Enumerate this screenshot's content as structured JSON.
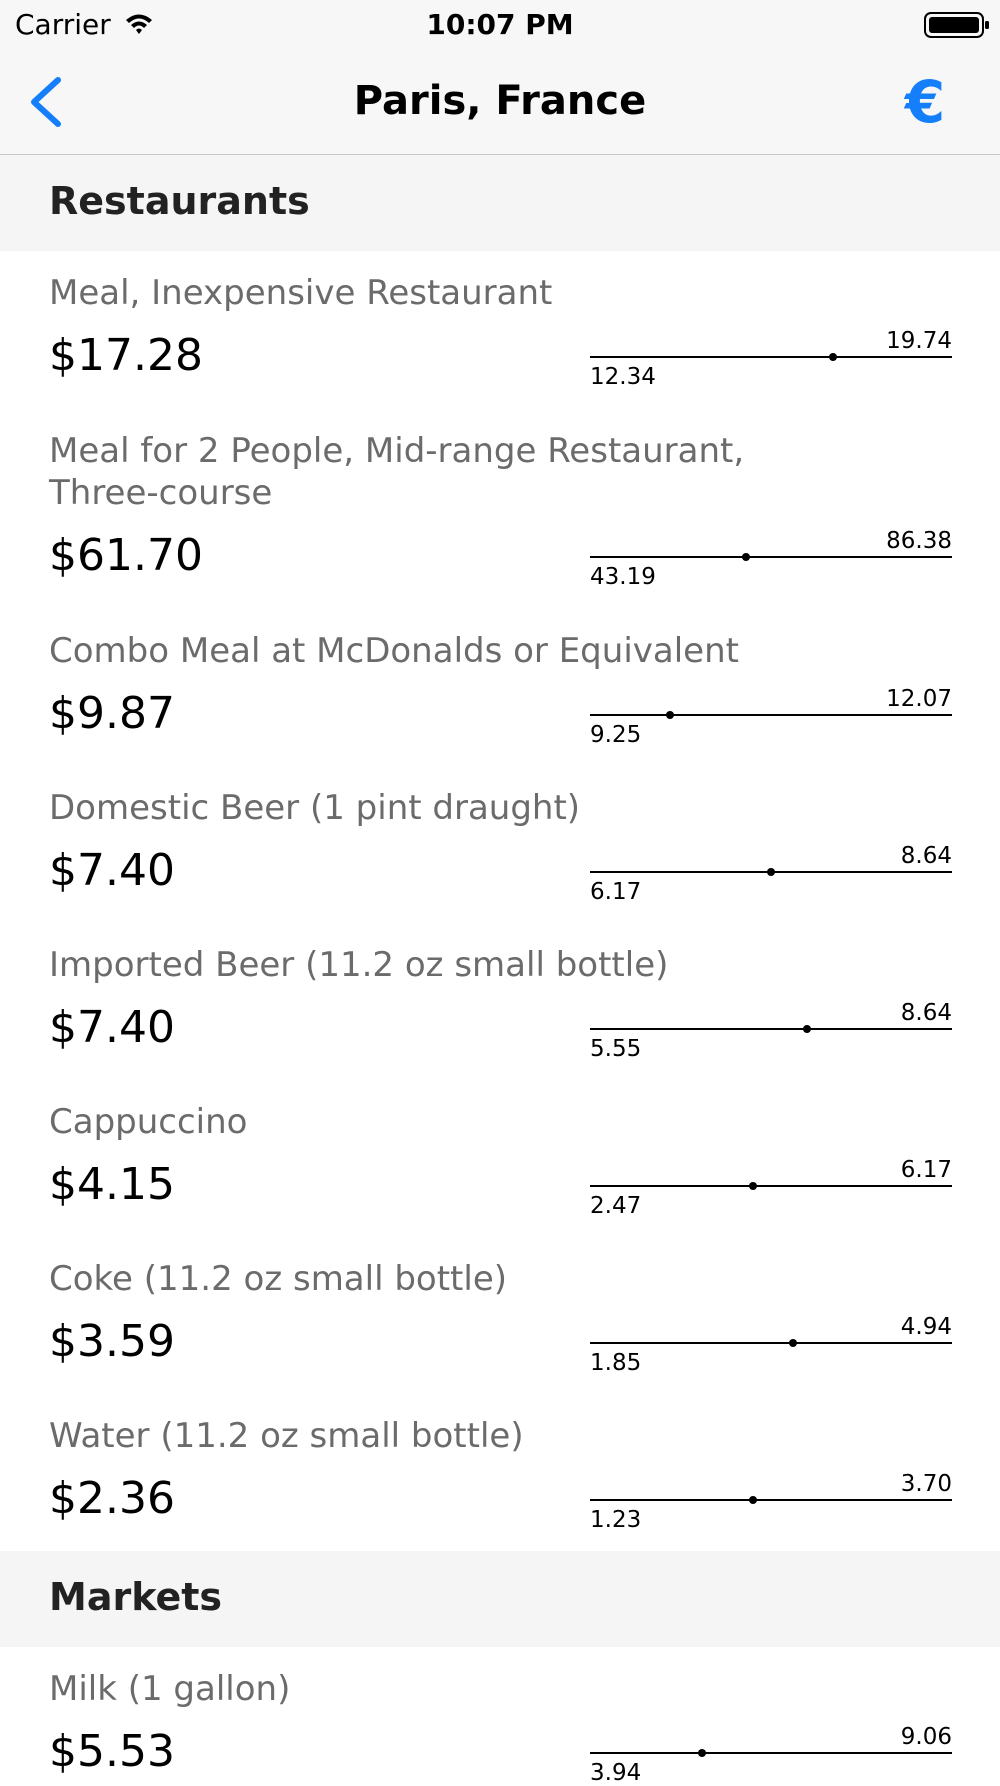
{
  "status_bar": {
    "carrier": "Carrier",
    "time": "10:07 PM"
  },
  "nav": {
    "title": "Paris, France",
    "currency_symbol": "€",
    "accent_color": "#147efb"
  },
  "sections": [
    {
      "title": "Restaurants",
      "items": [
        {
          "name": "Meal, Inexpensive Restaurant",
          "price": "$17.28",
          "min": "12.34",
          "max": "19.74"
        },
        {
          "name": "Meal for 2 People, Mid-range Restaurant, Three-course",
          "price": "$61.70",
          "min": "43.19",
          "max": "86.38"
        },
        {
          "name": "Combo Meal at McDonalds or Equivalent",
          "price": "$9.87",
          "min": "9.25",
          "max": "12.07"
        },
        {
          "name": "Domestic Beer (1 pint draught)",
          "price": "$7.40",
          "min": "6.17",
          "max": "8.64"
        },
        {
          "name": "Imported Beer (11.2 oz small bottle)",
          "price": "$7.40",
          "min": "5.55",
          "max": "8.64"
        },
        {
          "name": "Cappuccino",
          "price": "$4.15",
          "min": "2.47",
          "max": "6.17"
        },
        {
          "name": "Coke (11.2 oz small bottle)",
          "price": "$3.59",
          "min": "1.85",
          "max": "4.94"
        },
        {
          "name": "Water (11.2 oz small bottle)",
          "price": "$2.36",
          "min": "1.23",
          "max": "3.70"
        }
      ]
    },
    {
      "title": "Markets",
      "items": [
        {
          "name": "Milk (1 gallon)",
          "price": "$5.53",
          "min": "3.94",
          "max": "9.06"
        }
      ]
    }
  ]
}
